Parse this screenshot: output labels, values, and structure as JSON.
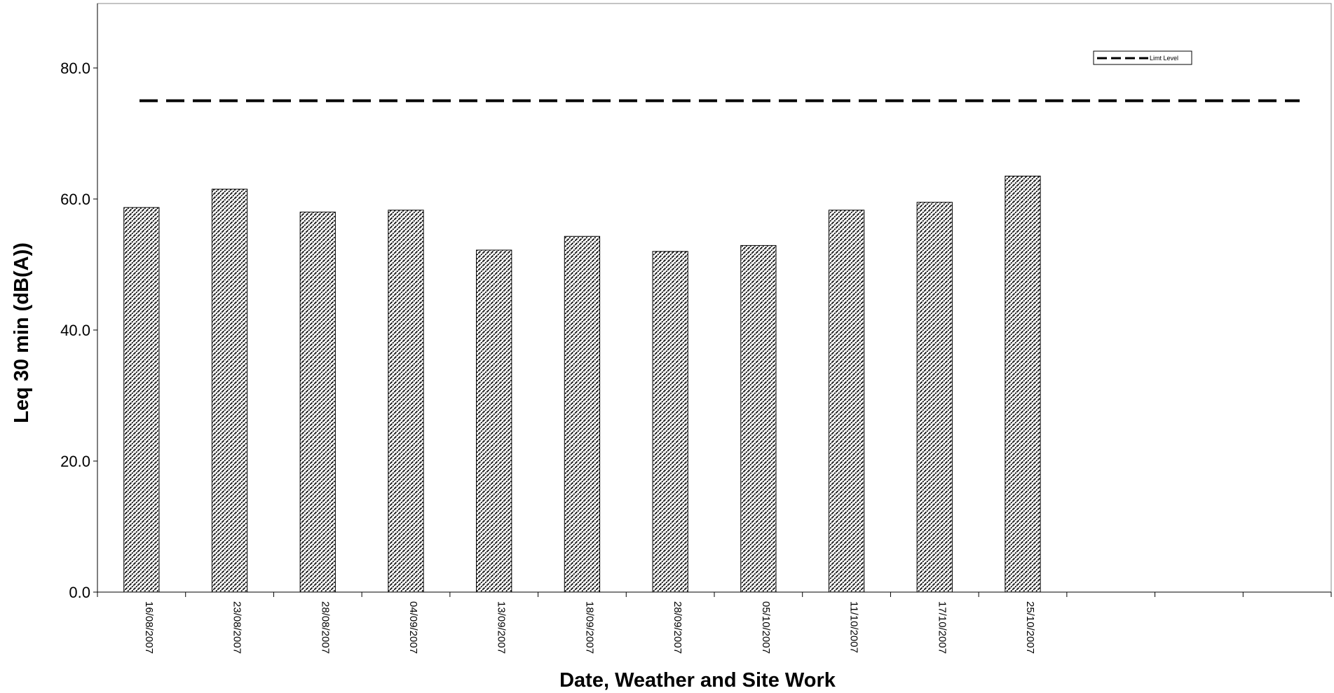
{
  "chart_data": {
    "type": "bar",
    "title": "",
    "xlabel": "Date, Weather and Site Work",
    "ylabel": "Leq 30 min (dB(A))",
    "ylim": [
      0,
      90
    ],
    "yticks": [
      0,
      20,
      40,
      60,
      80
    ],
    "ytick_labels": [
      "0.0",
      "20.0",
      "40.0",
      "60.0",
      "80.0"
    ],
    "categories": [
      "16/08/2007",
      "23/08/2007",
      "28/08/2007",
      "04/09/2007",
      "13/09/2007",
      "18/09/2007",
      "28/09/2007",
      "05/10/2007",
      "11/10/2007",
      "17/10/2007",
      "25/10/2007",
      "",
      "",
      ""
    ],
    "series": [
      {
        "values": [
          58.7,
          61.5,
          58.0,
          58.3,
          52.2,
          54.3,
          52.0,
          52.9,
          58.3,
          59.5,
          63.5,
          null,
          null,
          null
        ],
        "pattern": "diagonal-hatch",
        "color": "#000000"
      },
      {
        "name": "Limt Level",
        "type": "line",
        "style": "dashed",
        "value": 75.0,
        "color": "#000000"
      }
    ],
    "grid": false,
    "legend_position": "top-right"
  }
}
